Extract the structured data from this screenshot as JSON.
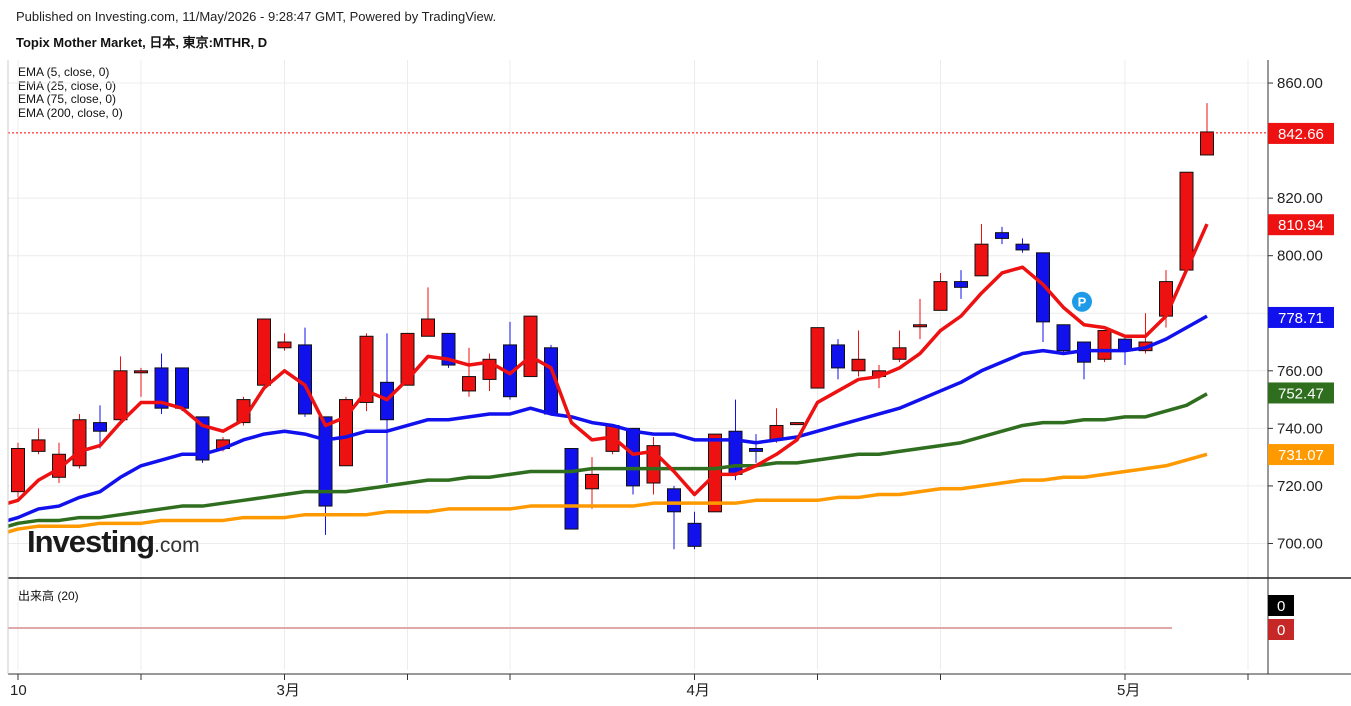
{
  "header": {
    "published": "Published on Investing.com, 11/May/2026 - 9:28:47 GMT, Powered by TradingView.",
    "title": "Topix Mother Market, 日本, 東京:MTHR, D"
  },
  "legend": [
    "EMA (5, close, 0)",
    "EMA (25, close, 0)",
    "EMA (75, close, 0)",
    "EMA (200, close, 0)"
  ],
  "volume_panel": {
    "label": "出来高 (20)",
    "tags": [
      "0",
      "0"
    ]
  },
  "logo": {
    "main": "Investing",
    "suffix": ".com"
  },
  "colors": {
    "up": "#ee1111",
    "down": "#1111ee",
    "ema5": "#ee1111",
    "ema25": "#1111ee",
    "ema75": "#2e6e1e",
    "ema200": "#ff9900",
    "last_price_line": "#ff0000"
  },
  "chart_data": {
    "type": "candlestick",
    "ylim": [
      688,
      868
    ],
    "y_ticks": [
      "860.00",
      "820.00",
      "800.00",
      "780.00",
      "760.00",
      "740.00",
      "720.00",
      "700.00"
    ],
    "y_tick_values": [
      860,
      820,
      800,
      780,
      760,
      740,
      720,
      700
    ],
    "x_labels": [
      "10",
      "3月",
      "4月",
      "5月"
    ],
    "x_label_index": [
      0,
      13,
      33,
      54
    ],
    "price_tags": [
      {
        "label": "842.66",
        "value": 842.66,
        "color": "#ee1111",
        "text": "#ffffff"
      },
      {
        "label": "810.94",
        "value": 810.94,
        "color": "#ee1111",
        "text": "#ffffff"
      },
      {
        "label": "778.71",
        "value": 778.71,
        "color": "#1111ee",
        "text": "#ffffff"
      },
      {
        "label": "752.47",
        "value": 752.47,
        "color": "#2e6e1e",
        "text": "#ffffff"
      },
      {
        "label": "731.07",
        "value": 731.07,
        "color": "#ff9900",
        "text": "#ffffff"
      }
    ],
    "marker": {
      "label": "P",
      "index": 52,
      "value": 784
    },
    "candles": [
      {
        "o": 718,
        "h": 735,
        "l": 716,
        "c": 733
      },
      {
        "o": 732,
        "h": 740,
        "l": 731,
        "c": 736
      },
      {
        "o": 723,
        "h": 735,
        "l": 721,
        "c": 731
      },
      {
        "o": 727,
        "h": 745,
        "l": 726,
        "c": 743
      },
      {
        "o": 742,
        "h": 748,
        "l": 733,
        "c": 739
      },
      {
        "o": 743,
        "h": 765,
        "l": 742,
        "c": 760
      },
      {
        "o": 760,
        "h": 761,
        "l": 751,
        "c": 760
      },
      {
        "o": 761,
        "h": 766,
        "l": 745,
        "c": 747
      },
      {
        "o": 761,
        "h": 761,
        "l": 746,
        "c": 747
      },
      {
        "o": 744,
        "h": 744,
        "l": 728,
        "c": 729
      },
      {
        "o": 733,
        "h": 737,
        "l": 732,
        "c": 736
      },
      {
        "o": 742,
        "h": 751,
        "l": 741,
        "c": 750
      },
      {
        "o": 755,
        "h": 778,
        "l": 755,
        "c": 778
      },
      {
        "o": 768,
        "h": 773,
        "l": 767,
        "c": 770
      },
      {
        "o": 769,
        "h": 775,
        "l": 744,
        "c": 745
      },
      {
        "o": 744,
        "h": 744,
        "l": 703,
        "c": 713
      },
      {
        "o": 727,
        "h": 751,
        "l": 727,
        "c": 750
      },
      {
        "o": 749,
        "h": 773,
        "l": 746,
        "c": 772
      },
      {
        "o": 756,
        "h": 773,
        "l": 721,
        "c": 743
      },
      {
        "o": 755,
        "h": 773,
        "l": 755,
        "c": 773
      },
      {
        "o": 772,
        "h": 789,
        "l": 772,
        "c": 778
      },
      {
        "o": 773,
        "h": 773,
        "l": 761,
        "c": 762
      },
      {
        "o": 753,
        "h": 768,
        "l": 751,
        "c": 758
      },
      {
        "o": 757,
        "h": 766,
        "l": 753,
        "c": 764
      },
      {
        "o": 769,
        "h": 777,
        "l": 750,
        "c": 751
      },
      {
        "o": 758,
        "h": 779,
        "l": 758,
        "c": 779
      },
      {
        "o": 768,
        "h": 769,
        "l": 745,
        "c": 745
      },
      {
        "o": 733,
        "h": 733,
        "l": 705,
        "c": 705
      },
      {
        "o": 719,
        "h": 730,
        "l": 712,
        "c": 724
      },
      {
        "o": 732,
        "h": 741,
        "l": 731,
        "c": 741
      },
      {
        "o": 740,
        "h": 740,
        "l": 717,
        "c": 720
      },
      {
        "o": 721,
        "h": 737,
        "l": 717,
        "c": 734
      },
      {
        "o": 719,
        "h": 720,
        "l": 698,
        "c": 711
      },
      {
        "o": 707,
        "h": 711,
        "l": 698,
        "c": 699
      },
      {
        "o": 711,
        "h": 738,
        "l": 711,
        "c": 738
      },
      {
        "o": 739,
        "h": 750,
        "l": 722,
        "c": 724
      },
      {
        "o": 733,
        "h": 738,
        "l": 728,
        "c": 732
      },
      {
        "o": 736,
        "h": 747,
        "l": 735,
        "c": 741
      },
      {
        "o": 742,
        "h": 742,
        "l": 742,
        "c": 742
      },
      {
        "o": 754,
        "h": 775,
        "l": 754,
        "c": 775
      },
      {
        "o": 769,
        "h": 771,
        "l": 757,
        "c": 761
      },
      {
        "o": 760,
        "h": 774,
        "l": 758,
        "c": 764
      },
      {
        "o": 758,
        "h": 762,
        "l": 754,
        "c": 760
      },
      {
        "o": 764,
        "h": 774,
        "l": 763,
        "c": 768
      },
      {
        "o": 776,
        "h": 785,
        "l": 771,
        "c": 776
      },
      {
        "o": 781,
        "h": 794,
        "l": 781,
        "c": 791
      },
      {
        "o": 791,
        "h": 795,
        "l": 785,
        "c": 789
      },
      {
        "o": 793,
        "h": 811,
        "l": 793,
        "c": 804
      },
      {
        "o": 808,
        "h": 810,
        "l": 804,
        "c": 806
      },
      {
        "o": 804,
        "h": 806,
        "l": 801,
        "c": 802
      },
      {
        "o": 801,
        "h": 801,
        "l": 770,
        "c": 777
      },
      {
        "o": 776,
        "h": 776,
        "l": 766,
        "c": 767
      },
      {
        "o": 770,
        "h": 770,
        "l": 757,
        "c": 763
      },
      {
        "o": 764,
        "h": 774,
        "l": 763,
        "c": 774
      },
      {
        "o": 771,
        "h": 772,
        "l": 762,
        "c": 767
      },
      {
        "o": 767,
        "h": 780,
        "l": 766,
        "c": 770
      },
      {
        "o": 779,
        "h": 795,
        "l": 775,
        "c": 791
      },
      {
        "o": 795,
        "h": 829,
        "l": 795,
        "c": 829
      },
      {
        "o": 835,
        "h": 853,
        "l": 835,
        "c": 843
      }
    ],
    "ema5": [
      715,
      722,
      726,
      732,
      734,
      742,
      749,
      749,
      747,
      741,
      739,
      743,
      754,
      760,
      755,
      741,
      744,
      753,
      750,
      757,
      765,
      764,
      762,
      763,
      759,
      765,
      761,
      742,
      736,
      737,
      731,
      732,
      725,
      717,
      724,
      724,
      727,
      731,
      736,
      749,
      753,
      757,
      758,
      761,
      766,
      774,
      779,
      787,
      794,
      796,
      790,
      782,
      776,
      775,
      772,
      772,
      779,
      795,
      811
    ],
    "ema25": [
      709,
      712,
      713,
      716,
      718,
      723,
      727,
      729,
      731,
      731,
      733,
      736,
      738,
      739,
      738,
      736,
      737,
      739,
      739,
      741,
      743,
      743,
      744,
      745,
      745,
      747,
      745,
      744,
      742,
      741,
      739,
      738,
      738,
      736,
      736,
      736,
      735,
      736,
      737,
      739,
      741,
      743,
      745,
      747,
      750,
      753,
      756,
      760,
      763,
      766,
      767,
      766,
      767,
      767,
      767,
      768,
      771,
      775,
      779
    ],
    "ema75": [
      707,
      708,
      708,
      709,
      709,
      710,
      711,
      712,
      713,
      713,
      714,
      715,
      716,
      717,
      718,
      718,
      718,
      719,
      720,
      721,
      722,
      722,
      723,
      723,
      724,
      725,
      725,
      725,
      726,
      726,
      726,
      726,
      726,
      726,
      726,
      727,
      727,
      728,
      728,
      729,
      730,
      731,
      731,
      732,
      733,
      734,
      735,
      737,
      739,
      741,
      742,
      742,
      743,
      743,
      744,
      744,
      746,
      748,
      752
    ],
    "ema200": [
      705,
      706,
      706,
      706,
      707,
      707,
      707,
      708,
      708,
      708,
      708,
      709,
      709,
      709,
      710,
      710,
      710,
      710,
      711,
      711,
      711,
      712,
      712,
      712,
      712,
      713,
      713,
      713,
      713,
      713,
      713,
      714,
      714,
      714,
      714,
      714,
      715,
      715,
      715,
      715,
      716,
      716,
      717,
      717,
      718,
      719,
      719,
      720,
      721,
      722,
      722,
      723,
      723,
      724,
      725,
      726,
      727,
      729,
      731
    ]
  }
}
